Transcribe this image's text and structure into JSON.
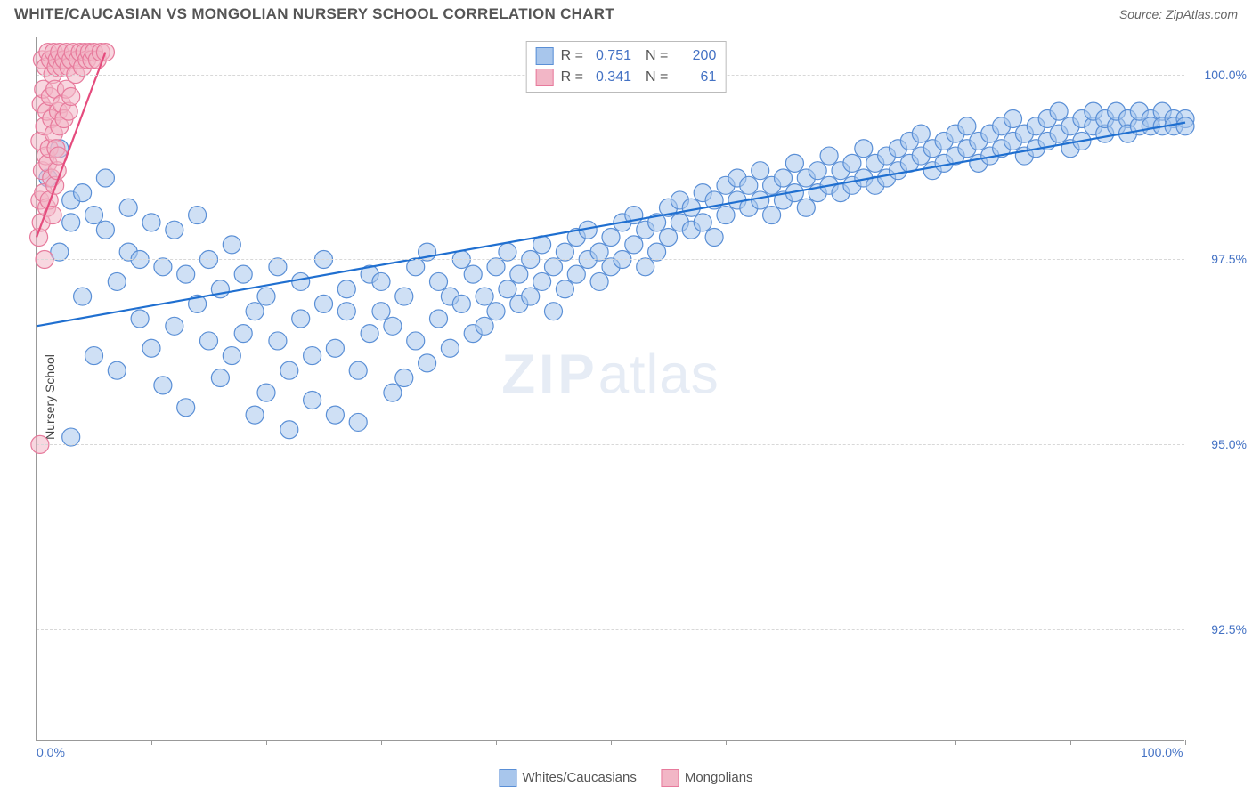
{
  "header": {
    "title": "WHITE/CAUCASIAN VS MONGOLIAN NURSERY SCHOOL CORRELATION CHART",
    "source_prefix": "Source: ",
    "source": "ZipAtlas.com"
  },
  "watermark": {
    "part1": "ZIP",
    "part2": "atlas"
  },
  "chart": {
    "type": "scatter",
    "ylabel": "Nursery School",
    "background_color": "#ffffff",
    "grid_color": "#d8d8d8",
    "axis_color": "#999999",
    "xlim": [
      0,
      100
    ],
    "ylim": [
      91.0,
      100.5
    ],
    "x_ticks": [
      0,
      10,
      20,
      30,
      40,
      50,
      60,
      70,
      80,
      90,
      100
    ],
    "x_tick_labels": {
      "0": "0.0%",
      "100": "100.0%"
    },
    "y_ticks": [
      92.5,
      95.0,
      97.5,
      100.0
    ],
    "y_tick_labels": {
      "92.5": "92.5%",
      "95.0": "95.0%",
      "97.5": "97.5%",
      "100.0": "100.0%"
    },
    "marker_radius": 10,
    "marker_opacity": 0.55,
    "line_width": 2.2,
    "series": [
      {
        "id": "whites",
        "label": "Whites/Caucasians",
        "fill": "#a8c6ec",
        "stroke": "#5a8fd6",
        "line_color": "#1f6fd0",
        "R": "0.751",
        "N": "200",
        "trend": {
          "x1": 0,
          "y1": 96.6,
          "x2": 100,
          "y2": 99.35
        },
        "points": [
          [
            1,
            98.6
          ],
          [
            2,
            99.0
          ],
          [
            2,
            97.6
          ],
          [
            3,
            98.3
          ],
          [
            3,
            95.1
          ],
          [
            4,
            97.0
          ],
          [
            4,
            98.4
          ],
          [
            5,
            98.1
          ],
          [
            5,
            96.2
          ],
          [
            6,
            97.9
          ],
          [
            6,
            98.6
          ],
          [
            7,
            97.2
          ],
          [
            7,
            96.0
          ],
          [
            8,
            97.6
          ],
          [
            8,
            98.2
          ],
          [
            9,
            96.7
          ],
          [
            9,
            97.5
          ],
          [
            10,
            98.0
          ],
          [
            10,
            96.3
          ],
          [
            11,
            97.4
          ],
          [
            11,
            95.8
          ],
          [
            12,
            97.9
          ],
          [
            12,
            96.6
          ],
          [
            13,
            97.3
          ],
          [
            13,
            95.5
          ],
          [
            14,
            96.9
          ],
          [
            14,
            98.1
          ],
          [
            15,
            97.5
          ],
          [
            15,
            96.4
          ],
          [
            16,
            97.1
          ],
          [
            16,
            95.9
          ],
          [
            17,
            96.2
          ],
          [
            17,
            97.7
          ],
          [
            18,
            96.5
          ],
          [
            18,
            97.3
          ],
          [
            19,
            95.4
          ],
          [
            19,
            96.8
          ],
          [
            20,
            97.0
          ],
          [
            20,
            95.7
          ],
          [
            21,
            96.4
          ],
          [
            21,
            97.4
          ],
          [
            22,
            96.0
          ],
          [
            22,
            95.2
          ],
          [
            23,
            96.7
          ],
          [
            23,
            97.2
          ],
          [
            24,
            96.2
          ],
          [
            24,
            95.6
          ],
          [
            25,
            96.9
          ],
          [
            25,
            97.5
          ],
          [
            26,
            96.3
          ],
          [
            26,
            95.4
          ],
          [
            27,
            96.8
          ],
          [
            27,
            97.1
          ],
          [
            28,
            96.0
          ],
          [
            28,
            95.3
          ],
          [
            29,
            96.5
          ],
          [
            29,
            97.3
          ],
          [
            30,
            96.8
          ],
          [
            30,
            97.2
          ],
          [
            31,
            95.7
          ],
          [
            31,
            96.6
          ],
          [
            32,
            97.0
          ],
          [
            32,
            95.9
          ],
          [
            33,
            96.4
          ],
          [
            33,
            97.4
          ],
          [
            34,
            96.1
          ],
          [
            34,
            97.6
          ],
          [
            35,
            96.7
          ],
          [
            35,
            97.2
          ],
          [
            36,
            96.3
          ],
          [
            36,
            97.0
          ],
          [
            37,
            96.9
          ],
          [
            37,
            97.5
          ],
          [
            38,
            96.5
          ],
          [
            38,
            97.3
          ],
          [
            39,
            97.0
          ],
          [
            39,
            96.6
          ],
          [
            40,
            97.4
          ],
          [
            40,
            96.8
          ],
          [
            41,
            97.6
          ],
          [
            41,
            97.1
          ],
          [
            42,
            97.3
          ],
          [
            42,
            96.9
          ],
          [
            43,
            97.5
          ],
          [
            43,
            97.0
          ],
          [
            44,
            97.2
          ],
          [
            44,
            97.7
          ],
          [
            45,
            97.4
          ],
          [
            45,
            96.8
          ],
          [
            46,
            97.6
          ],
          [
            46,
            97.1
          ],
          [
            47,
            97.8
          ],
          [
            47,
            97.3
          ],
          [
            48,
            97.5
          ],
          [
            48,
            97.9
          ],
          [
            49,
            97.2
          ],
          [
            49,
            97.6
          ],
          [
            50,
            97.8
          ],
          [
            50,
            97.4
          ],
          [
            51,
            98.0
          ],
          [
            51,
            97.5
          ],
          [
            52,
            97.7
          ],
          [
            52,
            98.1
          ],
          [
            53,
            97.9
          ],
          [
            53,
            97.4
          ],
          [
            54,
            98.0
          ],
          [
            54,
            97.6
          ],
          [
            55,
            98.2
          ],
          [
            55,
            97.8
          ],
          [
            56,
            98.0
          ],
          [
            56,
            98.3
          ],
          [
            57,
            97.9
          ],
          [
            57,
            98.2
          ],
          [
            58,
            98.4
          ],
          [
            58,
            98.0
          ],
          [
            59,
            98.3
          ],
          [
            59,
            97.8
          ],
          [
            60,
            98.5
          ],
          [
            60,
            98.1
          ],
          [
            61,
            98.3
          ],
          [
            61,
            98.6
          ],
          [
            62,
            98.2
          ],
          [
            62,
            98.5
          ],
          [
            63,
            98.7
          ],
          [
            63,
            98.3
          ],
          [
            64,
            98.5
          ],
          [
            64,
            98.1
          ],
          [
            65,
            98.6
          ],
          [
            65,
            98.3
          ],
          [
            66,
            98.8
          ],
          [
            66,
            98.4
          ],
          [
            67,
            98.6
          ],
          [
            67,
            98.2
          ],
          [
            68,
            98.7
          ],
          [
            68,
            98.4
          ],
          [
            69,
            98.9
          ],
          [
            69,
            98.5
          ],
          [
            70,
            98.7
          ],
          [
            70,
            98.4
          ],
          [
            71,
            98.8
          ],
          [
            71,
            98.5
          ],
          [
            72,
            99.0
          ],
          [
            72,
            98.6
          ],
          [
            73,
            98.8
          ],
          [
            73,
            98.5
          ],
          [
            74,
            98.9
          ],
          [
            74,
            98.6
          ],
          [
            75,
            99.0
          ],
          [
            75,
            98.7
          ],
          [
            76,
            99.1
          ],
          [
            76,
            98.8
          ],
          [
            77,
            98.9
          ],
          [
            77,
            99.2
          ],
          [
            78,
            99.0
          ],
          [
            78,
            98.7
          ],
          [
            79,
            99.1
          ],
          [
            79,
            98.8
          ],
          [
            80,
            99.2
          ],
          [
            80,
            98.9
          ],
          [
            81,
            99.0
          ],
          [
            81,
            99.3
          ],
          [
            82,
            99.1
          ],
          [
            82,
            98.8
          ],
          [
            83,
            99.2
          ],
          [
            83,
            98.9
          ],
          [
            84,
            99.3
          ],
          [
            84,
            99.0
          ],
          [
            85,
            99.1
          ],
          [
            85,
            99.4
          ],
          [
            86,
            99.2
          ],
          [
            86,
            98.9
          ],
          [
            87,
            99.3
          ],
          [
            87,
            99.0
          ],
          [
            88,
            99.4
          ],
          [
            88,
            99.1
          ],
          [
            89,
            99.2
          ],
          [
            89,
            99.5
          ],
          [
            90,
            99.3
          ],
          [
            90,
            99.0
          ],
          [
            91,
            99.4
          ],
          [
            91,
            99.1
          ],
          [
            92,
            99.3
          ],
          [
            92,
            99.5
          ],
          [
            93,
            99.2
          ],
          [
            93,
            99.4
          ],
          [
            94,
            99.3
          ],
          [
            94,
            99.5
          ],
          [
            95,
            99.4
          ],
          [
            95,
            99.2
          ],
          [
            96,
            99.3
          ],
          [
            96,
            99.5
          ],
          [
            97,
            99.4
          ],
          [
            97,
            99.3
          ],
          [
            98,
            99.5
          ],
          [
            98,
            99.3
          ],
          [
            99,
            99.4
          ],
          [
            99,
            99.3
          ],
          [
            100,
            99.4
          ],
          [
            100,
            99.3
          ],
          [
            3,
            98.0
          ]
        ]
      },
      {
        "id": "mongolians",
        "label": "Mongolians",
        "fill": "#f2b6c6",
        "stroke": "#e77a9c",
        "line_color": "#e54b7d",
        "R": "0.341",
        "N": "61",
        "trend": {
          "x1": 0,
          "y1": 97.8,
          "x2": 6,
          "y2": 100.3
        },
        "points": [
          [
            0.2,
            97.8
          ],
          [
            0.3,
            98.3
          ],
          [
            0.3,
            99.1
          ],
          [
            0.4,
            98.0
          ],
          [
            0.4,
            99.6
          ],
          [
            0.5,
            98.7
          ],
          [
            0.5,
            100.2
          ],
          [
            0.6,
            98.4
          ],
          [
            0.6,
            99.8
          ],
          [
            0.7,
            97.5
          ],
          [
            0.7,
            99.3
          ],
          [
            0.8,
            98.9
          ],
          [
            0.8,
            100.1
          ],
          [
            0.9,
            98.2
          ],
          [
            0.9,
            99.5
          ],
          [
            1.0,
            98.8
          ],
          [
            1.0,
            100.3
          ],
          [
            1.1,
            99.0
          ],
          [
            1.1,
            98.3
          ],
          [
            1.2,
            99.7
          ],
          [
            1.2,
            100.2
          ],
          [
            1.3,
            98.6
          ],
          [
            1.3,
            99.4
          ],
          [
            1.4,
            100.0
          ],
          [
            1.4,
            98.1
          ],
          [
            1.5,
            99.2
          ],
          [
            1.5,
            100.3
          ],
          [
            1.6,
            98.5
          ],
          [
            1.6,
            99.8
          ],
          [
            1.7,
            100.1
          ],
          [
            1.7,
            99.0
          ],
          [
            1.8,
            98.7
          ],
          [
            1.8,
            100.2
          ],
          [
            1.9,
            99.5
          ],
          [
            1.9,
            98.9
          ],
          [
            2.0,
            100.3
          ],
          [
            2.0,
            99.3
          ],
          [
            2.2,
            100.1
          ],
          [
            2.2,
            99.6
          ],
          [
            2.4,
            100.2
          ],
          [
            2.4,
            99.4
          ],
          [
            2.6,
            100.3
          ],
          [
            2.6,
            99.8
          ],
          [
            2.8,
            100.1
          ],
          [
            2.8,
            99.5
          ],
          [
            3.0,
            100.2
          ],
          [
            3.0,
            99.7
          ],
          [
            3.2,
            100.3
          ],
          [
            3.4,
            100.0
          ],
          [
            3.6,
            100.2
          ],
          [
            3.8,
            100.3
          ],
          [
            4.0,
            100.1
          ],
          [
            4.2,
            100.3
          ],
          [
            4.4,
            100.2
          ],
          [
            4.6,
            100.3
          ],
          [
            4.8,
            100.2
          ],
          [
            5.0,
            100.3
          ],
          [
            5.3,
            100.2
          ],
          [
            5.6,
            100.3
          ],
          [
            6.0,
            100.3
          ],
          [
            0.3,
            95.0
          ]
        ]
      }
    ]
  },
  "stats_legend": {
    "rows": [
      {
        "fill": "#a8c6ec",
        "stroke": "#5a8fd6",
        "R_label": "R =",
        "R": "0.751",
        "N_label": "N =",
        "N": "200"
      },
      {
        "fill": "#f2b6c6",
        "stroke": "#e77a9c",
        "R_label": "R =",
        "R": "0.341",
        "N_label": "N =",
        "N": "  61"
      }
    ]
  },
  "bottom_legend": {
    "items": [
      {
        "fill": "#a8c6ec",
        "stroke": "#5a8fd6",
        "label": "Whites/Caucasians"
      },
      {
        "fill": "#f2b6c6",
        "stroke": "#e77a9c",
        "label": "Mongolians"
      }
    ]
  }
}
